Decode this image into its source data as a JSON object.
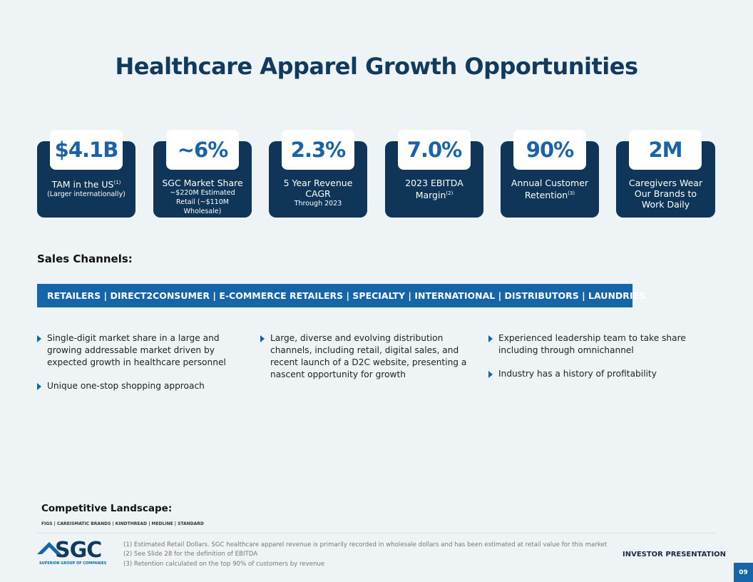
{
  "title": "Healthcare Apparel Growth Opportunities",
  "stats": [
    {
      "value": "$4.1B",
      "label": "TAM in the US",
      "sup": "(1)",
      "sub": "(Larger internationally)"
    },
    {
      "value": "~6%",
      "label": "SGC Market Share",
      "sub": "~$220M Estimated Retail (~$110M Wholesale)"
    },
    {
      "value": "2.3%",
      "label": "5 Year Revenue CAGR",
      "sub": "Through 2023"
    },
    {
      "value": "7.0%",
      "label": "2023 EBITDA Margin",
      "sup": "(2)"
    },
    {
      "value": "90%",
      "label": "Annual Customer Retention",
      "sup": "(3)"
    },
    {
      "value": "2M",
      "label": "Caregivers Wear Our Brands to Work Daily"
    }
  ],
  "sales_channels_heading": "Sales Channels:",
  "channels": "RETAILERS | DIRECT2CONSUMER | E-COMMERCE RETAILERS | SPECIALTY | INTERNATIONAL | DISTRIBUTORS | LAUNDRIES",
  "bullets": [
    [
      "Single-digit market share in a large and growing addressable market driven by expected growth in healthcare personnel",
      "Unique one-stop shopping approach"
    ],
    [
      "Large, diverse and evolving distribution channels, including retail, digital sales, and recent launch of a D2C website, presenting a nascent opportunity for growth"
    ],
    [
      "Experienced leadership team to take share including through omnichannel",
      "Industry has a history of profitability"
    ]
  ],
  "competitive_heading": "Competitive Landscape:",
  "competitors": "FIGS | CAREISMATIC BRANDS | KINDTHREAD | MEDLINE |  STANDARD",
  "logo": {
    "name": "SGC",
    "tagline": "SUPERIOR GROUP OF COMPANIES"
  },
  "footnotes": [
    "(1)  Estimated Retail Dollars. SGC healthcare apparel revenue is primarily recorded in wholesale dollars and has been estimated at retail value for this market",
    "(2)  See Slide 28 for the definition of EBITDA",
    "(3)  Retention calculated on the top 90% of customers by revenue"
  ],
  "footer_label": "INVESTOR PRESENTATION",
  "page_number": "09",
  "colors": {
    "navy": "#0f3558",
    "accent": "#1565a8"
  }
}
